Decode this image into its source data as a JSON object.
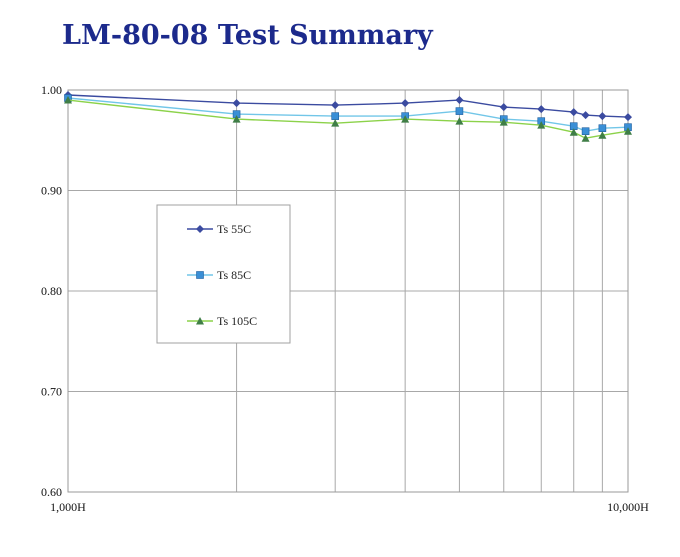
{
  "page": {
    "title": "LM-80-08 Test Summary"
  },
  "chart_data": {
    "type": "line",
    "title": "",
    "xlabel": "",
    "ylabel": "",
    "x_scale": "log",
    "xlim": [
      1000,
      10000
    ],
    "ylim": [
      0.6,
      1.0
    ],
    "grid": true,
    "legend_position": "center-left",
    "y_ticks": [
      "0.60",
      "0.70",
      "0.80",
      "0.90",
      "1.00"
    ],
    "y_tick_values": [
      0.6,
      0.7,
      0.8,
      0.9,
      1.0
    ],
    "x_ticks": [
      "1,000H",
      "10,000H"
    ],
    "x_tick_values": [
      1000,
      10000
    ],
    "x_gridlines": [
      2000,
      3000,
      4000,
      5000,
      6000,
      7000,
      8000,
      9000
    ],
    "x": [
      1000,
      2000,
      3000,
      4000,
      5000,
      6000,
      7000,
      8000,
      8400,
      9000,
      10000
    ],
    "series": [
      {
        "name": "Ts 55C",
        "color": "#3b4ba0",
        "marker": "diamond",
        "values": [
          0.995,
          0.987,
          0.985,
          0.987,
          0.99,
          0.983,
          0.981,
          0.978,
          0.975,
          0.974,
          0.973
        ]
      },
      {
        "name": "Ts 85C",
        "color": "#72c6e8",
        "marker": "square",
        "marker_color": "#3a8fd6",
        "values": [
          0.992,
          0.976,
          0.974,
          0.974,
          0.979,
          0.971,
          0.969,
          0.964,
          0.959,
          0.962,
          0.963
        ]
      },
      {
        "name": "Ts 105C",
        "color": "#8cd24a",
        "marker": "triangle",
        "marker_color": "#3f7e46",
        "values": [
          0.99,
          0.971,
          0.967,
          0.971,
          0.969,
          0.968,
          0.965,
          0.958,
          0.952,
          0.955,
          0.959
        ]
      }
    ]
  }
}
